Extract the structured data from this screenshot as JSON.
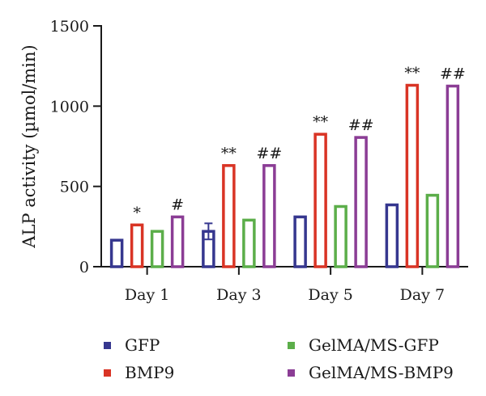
{
  "chart_data": {
    "type": "bar",
    "ylabel": "ALP activity (µmol/min)",
    "xlabel": "",
    "ylim": [
      0,
      1500
    ],
    "yticks": [
      0,
      500,
      1000,
      1500
    ],
    "categories": [
      "Day 1",
      "Day 3",
      "Day 5",
      "Day 7"
    ],
    "series": [
      {
        "name": "GFP",
        "color": "#36378f",
        "values": [
          165,
          220,
          310,
          385
        ],
        "errors": [
          0,
          50,
          0,
          0
        ],
        "marks": [
          "",
          "",
          "",
          ""
        ]
      },
      {
        "name": "BMP9",
        "color": "#d93425",
        "values": [
          260,
          630,
          825,
          1130
        ],
        "errors": [
          0,
          0,
          0,
          0
        ],
        "marks": [
          "*",
          "**",
          "**",
          "**"
        ]
      },
      {
        "name": "GelMA/MS-GFP",
        "color": "#5cae4a",
        "values": [
          220,
          290,
          375,
          445
        ],
        "errors": [
          0,
          0,
          0,
          0
        ],
        "marks": [
          "",
          "",
          "",
          ""
        ]
      },
      {
        "name": "GelMA/MS-BMP9",
        "color": "#8b3d95",
        "values": [
          310,
          630,
          805,
          1125
        ],
        "errors": [
          0,
          0,
          0,
          0
        ],
        "marks": [
          "#",
          "##",
          "##",
          "##"
        ]
      }
    ],
    "legend": {
      "position": "bottom",
      "columns": 2
    },
    "grid": false
  }
}
